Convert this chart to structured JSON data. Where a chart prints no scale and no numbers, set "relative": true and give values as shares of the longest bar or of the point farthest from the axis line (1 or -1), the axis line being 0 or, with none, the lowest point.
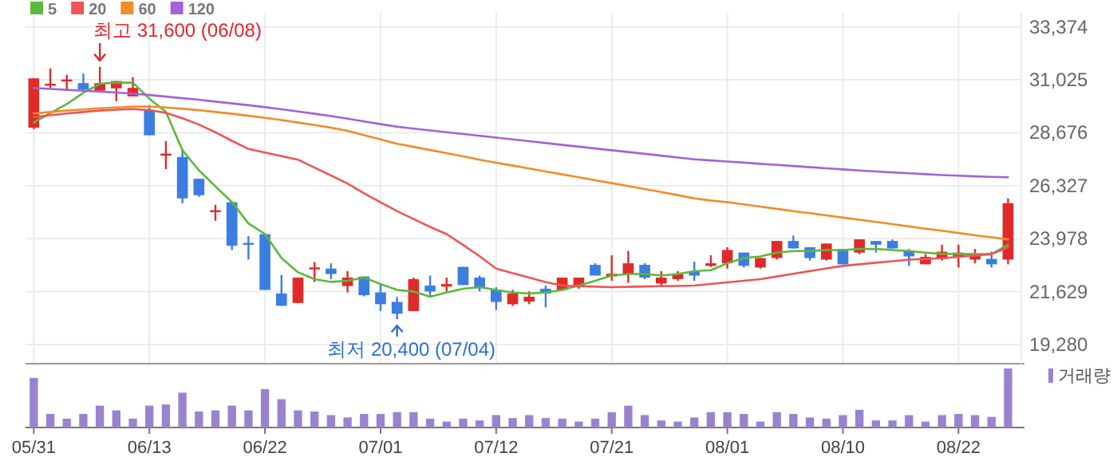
{
  "chart_data": [
    {
      "type": "candlestick",
      "tick_labels": "y",
      "grid": true,
      "legend": "top left",
      "categories": [
        null,
        null,
        null,
        null,
        null,
        null,
        null,
        null,
        null,
        null,
        null,
        null,
        null,
        null,
        null,
        null,
        null,
        null,
        null,
        null,
        null,
        null,
        null,
        null,
        null,
        null,
        null,
        null,
        null,
        null,
        null,
        null,
        null,
        null,
        null,
        null,
        null,
        null,
        null,
        null,
        null,
        null,
        null,
        null,
        null,
        null,
        null,
        null,
        null,
        null,
        null,
        null,
        null,
        null,
        null,
        null,
        null,
        null,
        null,
        null
      ],
      "ohlc": [
        [
          28900,
          31090,
          28830,
          31090
        ],
        [
          30800,
          31535,
          30665,
          30850
        ],
        [
          30990,
          31250,
          30545,
          31040
        ],
        [
          30878,
          31302,
          30545,
          30595
        ],
        [
          30545,
          31600,
          30500,
          30878
        ],
        [
          30645,
          30970,
          30080,
          30970
        ],
        [
          30290,
          31140,
          30290,
          30665
        ],
        [
          29654,
          29910,
          28565,
          28565
        ],
        [
          27700,
          28310,
          27060,
          27750
        ],
        [
          27600,
          27955,
          25550,
          25765
        ],
        [
          26635,
          26635,
          25835,
          25905
        ],
        [
          25170,
          25480,
          24775,
          25240
        ],
        [
          25595,
          25640,
          23470,
          23665
        ],
        [
          23790,
          24090,
          23050,
          23740
        ],
        [
          24180,
          24180,
          21705,
          21705
        ],
        [
          21545,
          22370,
          21000,
          21000
        ],
        [
          21125,
          22250,
          21125,
          22250
        ],
        [
          22620,
          22940,
          22060,
          22700
        ],
        [
          22650,
          22885,
          22180,
          22410
        ],
        [
          21875,
          22535,
          21590,
          22250
        ],
        [
          22300,
          22300,
          21420,
          21470
        ],
        [
          21590,
          21990,
          20765,
          21070
        ],
        [
          21170,
          21400,
          20400,
          20645
        ],
        [
          20765,
          22250,
          20765,
          22180
        ],
        [
          21895,
          22340,
          21400,
          21635
        ],
        [
          21850,
          22250,
          21635,
          21965
        ],
        [
          22725,
          22725,
          21920,
          21920
        ],
        [
          22250,
          22340,
          21635,
          21775
        ],
        [
          21705,
          21825,
          20815,
          21170
        ],
        [
          21070,
          21705,
          20995,
          21545
        ],
        [
          21190,
          21635,
          21070,
          21400
        ],
        [
          21755,
          21895,
          20930,
          21545
        ],
        [
          21705,
          22250,
          21705,
          22250
        ],
        [
          21895,
          22250,
          21755,
          22250
        ],
        [
          22815,
          22885,
          22340,
          22340
        ],
        [
          22300,
          23240,
          22110,
          22420
        ],
        [
          22410,
          23430,
          22020,
          22885
        ],
        [
          22815,
          22885,
          22180,
          22250
        ],
        [
          21990,
          22535,
          21895,
          22250
        ],
        [
          22180,
          22535,
          22110,
          22410
        ],
        [
          22535,
          22955,
          22110,
          22340
        ],
        [
          22770,
          23240,
          22725,
          22885
        ],
        [
          22885,
          23595,
          22650,
          23475
        ],
        [
          23360,
          23360,
          22700,
          22770
        ],
        [
          22700,
          23120,
          22650,
          23120
        ],
        [
          23120,
          23875,
          23050,
          23875
        ],
        [
          23875,
          24110,
          23545,
          23545
        ],
        [
          23595,
          23595,
          23010,
          23120
        ],
        [
          23050,
          23760,
          23010,
          23760
        ],
        [
          23520,
          23520,
          22840,
          22840
        ],
        [
          23360,
          23945,
          23290,
          23945
        ],
        [
          23875,
          23875,
          23360,
          23710
        ],
        [
          23875,
          23945,
          23545,
          23545
        ],
        [
          23430,
          23520,
          22770,
          23190
        ],
        [
          22840,
          23290,
          22840,
          23170
        ],
        [
          23080,
          23710,
          23010,
          23400
        ],
        [
          23170,
          23710,
          22700,
          23360
        ],
        [
          23050,
          23520,
          22885,
          23240
        ],
        [
          23080,
          23400,
          22700,
          22840
        ],
        [
          23050,
          25765,
          22840,
          25550
        ]
      ],
      "series": [
        {
          "name": "5",
          "type": "line",
          "color": "#5cb83c",
          "values": [
            29130,
            29550,
            29950,
            30450,
            30850,
            30900,
            30900,
            30190,
            29600,
            27900,
            27010,
            26300,
            25595,
            24655,
            24180,
            23120,
            22485,
            22180,
            22060,
            22110,
            22250,
            21965,
            21705,
            21635,
            21400,
            21590,
            21755,
            21825,
            21705,
            21590,
            21545,
            21590,
            21705,
            21895,
            22110,
            22340,
            22410,
            22410,
            22340,
            22410,
            22535,
            22580,
            22885,
            23120,
            23190,
            23360,
            23430,
            23430,
            23475,
            23475,
            23520,
            23520,
            23475,
            23430,
            23360,
            23300,
            23300,
            23290,
            23290,
            23710
          ]
        },
        {
          "name": "20",
          "type": "line",
          "color": "#ee5555",
          "values": [
            29370,
            29450,
            29530,
            29600,
            29660,
            29700,
            29725,
            29680,
            29560,
            29320,
            29040,
            28700,
            28320,
            27955,
            27800,
            27640,
            27483,
            27130,
            26780,
            26420,
            25990,
            25590,
            25200,
            24850,
            24500,
            24180,
            23700,
            23200,
            22650,
            22450,
            22250,
            22050,
            21895,
            21870,
            21850,
            21825,
            21840,
            21860,
            21870,
            21880,
            21900,
            21970,
            22040,
            22110,
            22180,
            22300,
            22420,
            22540,
            22660,
            22770,
            22840,
            22910,
            22980,
            23050,
            23080,
            23110,
            23170,
            23230,
            23290,
            23595
          ]
        },
        {
          "name": "60",
          "type": "line",
          "color": "#f28c28",
          "values": [
            29535,
            29600,
            29660,
            29710,
            29760,
            29800,
            29830,
            29840,
            29800,
            29740,
            29680,
            29600,
            29520,
            29430,
            29340,
            29240,
            29130,
            29020,
            28900,
            28760,
            28570,
            28380,
            28190,
            28050,
            27910,
            27770,
            27630,
            27483,
            27350,
            27220,
            27090,
            26960,
            26830,
            26700,
            26570,
            26440,
            26310,
            26180,
            26050,
            25910,
            25765,
            25670,
            25595,
            25500,
            25400,
            25300,
            25200,
            25110,
            25010,
            24910,
            24820,
            24720,
            24620,
            24520,
            24420,
            24330,
            24230,
            24130,
            24040,
            23945
          ]
        },
        {
          "name": "120",
          "type": "line",
          "color": "#a263d6",
          "values": [
            30665,
            30620,
            30580,
            30540,
            30500,
            30460,
            30410,
            30350,
            30280,
            30210,
            30140,
            30060,
            29980,
            29900,
            29810,
            29720,
            29620,
            29520,
            29420,
            29300,
            29180,
            29060,
            28945,
            28860,
            28780,
            28700,
            28620,
            28540,
            28460,
            28380,
            28300,
            28220,
            28140,
            28060,
            27980,
            27900,
            27820,
            27740,
            27660,
            27580,
            27500,
            27450,
            27400,
            27350,
            27300,
            27250,
            27200,
            27150,
            27100,
            27050,
            27000,
            26960,
            26920,
            26880,
            26840,
            26800,
            26770,
            26740,
            26720,
            26700
          ]
        }
      ],
      "ylim": [
        18430,
        34000
      ],
      "yticks": [
        {
          "value": 19280,
          "label": "19,280"
        },
        {
          "value": 21629,
          "label": "21,629"
        },
        {
          "value": 23978,
          "label": "23,978"
        },
        {
          "value": 26327,
          "label": "26,327"
        },
        {
          "value": 28676,
          "label": "28,676"
        },
        {
          "value": 31025,
          "label": "31,025"
        },
        {
          "value": 33374,
          "label": "33,374"
        }
      ],
      "annotations": [
        "최고 31,600 (06/08)",
        "최저 20,400 (07/04)"
      ]
    },
    {
      "type": "bar",
      "tick_labels": "x",
      "relative": true,
      "legend": "top right",
      "categories": [
        "05/31",
        null,
        null,
        null,
        null,
        null,
        null,
        "06/13",
        null,
        null,
        null,
        null,
        null,
        null,
        "06/22",
        null,
        null,
        null,
        null,
        null,
        null,
        "07/01",
        null,
        null,
        null,
        null,
        null,
        null,
        "07/12",
        null,
        null,
        null,
        null,
        null,
        null,
        "07/21",
        null,
        null,
        null,
        null,
        null,
        null,
        "08/01",
        null,
        null,
        null,
        null,
        null,
        null,
        "08/10",
        null,
        null,
        null,
        null,
        null,
        null,
        "08/22",
        null,
        null,
        null
      ],
      "series": [
        {
          "name": "거래량",
          "color": "#9b82cf",
          "values": [
            0.84,
            0.23,
            0.15,
            0.23,
            0.37,
            0.29,
            0.15,
            0.37,
            0.39,
            0.59,
            0.27,
            0.29,
            0.37,
            0.29,
            0.65,
            0.48,
            0.29,
            0.27,
            0.21,
            0.17,
            0.23,
            0.23,
            0.26,
            0.26,
            0.15,
            0.1,
            0.15,
            0.12,
            0.21,
            0.16,
            0.21,
            0.16,
            0.15,
            0.1,
            0.15,
            0.26,
            0.37,
            0.21,
            0.12,
            0.1,
            0.17,
            0.26,
            0.26,
            0.23,
            0.1,
            0.26,
            0.23,
            0.17,
            0.15,
            0.21,
            0.3,
            0.12,
            0.12,
            0.21,
            0.1,
            0.21,
            0.23,
            0.21,
            0.18,
            1
          ]
        }
      ]
    }
  ]
}
